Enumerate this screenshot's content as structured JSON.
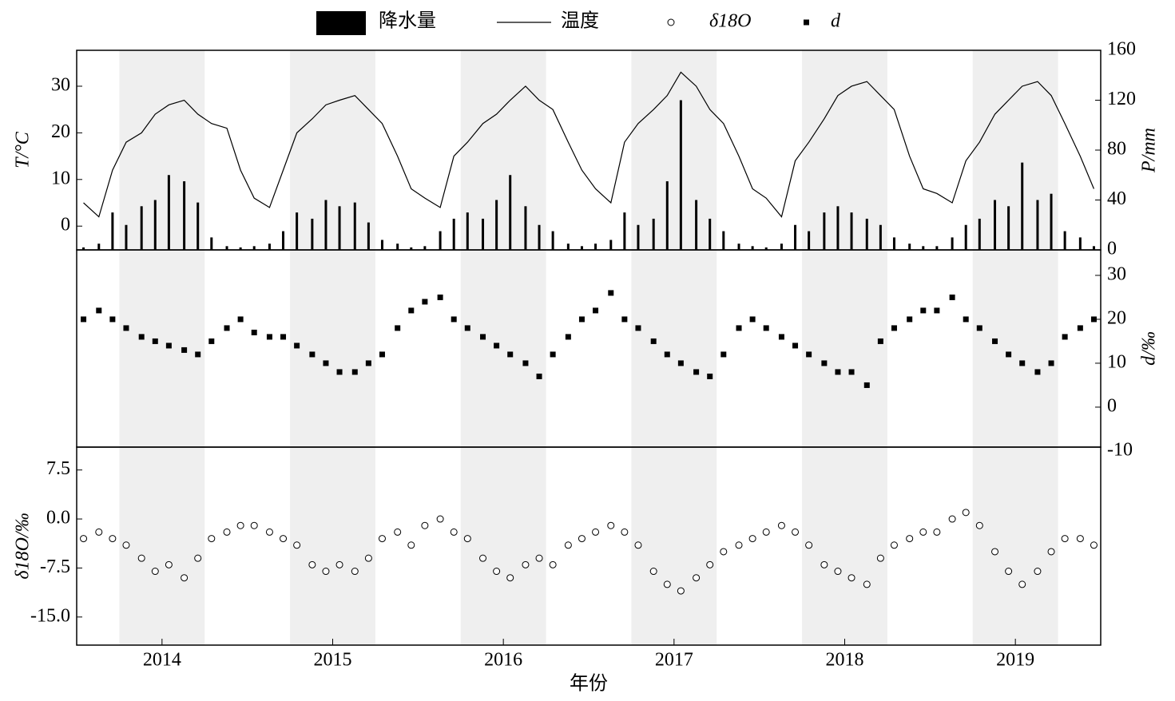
{
  "chart_data": {
    "type": "combo",
    "xlabel": "年份",
    "xlim": [
      2014.0,
      2020.0
    ],
    "xticks": [
      {
        "value": 2014.5,
        "label": "2014"
      },
      {
        "value": 2015.5,
        "label": "2015"
      },
      {
        "value": 2016.5,
        "label": "2016"
      },
      {
        "value": 2017.5,
        "label": "2017"
      },
      {
        "value": 2018.5,
        "label": "2018"
      },
      {
        "value": 2019.5,
        "label": "2019"
      }
    ],
    "shaded_periods": [
      [
        2014.25,
        2014.75
      ],
      [
        2015.25,
        2015.75
      ],
      [
        2016.25,
        2016.75
      ],
      [
        2017.25,
        2017.75
      ],
      [
        2018.25,
        2018.75
      ],
      [
        2019.25,
        2019.75
      ]
    ],
    "shade_color": "#efefef",
    "panels": [
      {
        "ylabel": "T/°C",
        "ylim": [
          -5.1,
          37.7
        ],
        "yticks": [
          0,
          10,
          20,
          30
        ],
        "y2label": "P/mm",
        "y2lim": [
          0,
          160
        ],
        "y2ticks": [
          0,
          40,
          80,
          120,
          160
        ]
      },
      {
        "y2label": "d/‰",
        "y2lim": [
          -9.1,
          35.8
        ],
        "y2ticks": [
          -10,
          0,
          10,
          20,
          30
        ]
      },
      {
        "ylabel": "δ18O/‰",
        "ylim": [
          -19.3,
          11.0
        ],
        "yticks": [
          7.5,
          {
            "value": 0,
            "label": "0.0"
          },
          -7.5,
          {
            "value": -15,
            "label": "-15.0"
          }
        ]
      }
    ],
    "x": [
      2014.04,
      2014.13,
      2014.21,
      2014.29,
      2014.38,
      2014.46,
      2014.54,
      2014.63,
      2014.71,
      2014.79,
      2014.88,
      2014.96,
      2015.04,
      2015.13,
      2015.21,
      2015.29,
      2015.38,
      2015.46,
      2015.54,
      2015.63,
      2015.71,
      2015.79,
      2015.88,
      2015.96,
      2016.04,
      2016.13,
      2016.21,
      2016.29,
      2016.38,
      2016.46,
      2016.54,
      2016.63,
      2016.71,
      2016.79,
      2016.88,
      2016.96,
      2017.04,
      2017.13,
      2017.21,
      2017.29,
      2017.38,
      2017.46,
      2017.54,
      2017.63,
      2017.71,
      2017.79,
      2017.88,
      2017.96,
      2018.04,
      2018.13,
      2018.21,
      2018.29,
      2018.38,
      2018.46,
      2018.54,
      2018.63,
      2018.71,
      2018.79,
      2018.88,
      2018.96,
      2019.04,
      2019.13,
      2019.21,
      2019.29,
      2019.38,
      2019.46,
      2019.54,
      2019.63,
      2019.71,
      2019.79,
      2019.88,
      2019.96
    ],
    "series": [
      {
        "name": "降水量",
        "type": "bar",
        "panel": 0,
        "axis": "y2",
        "color": "#000000",
        "values": [
          2,
          5,
          30,
          20,
          35,
          40,
          60,
          55,
          38,
          10,
          3,
          2,
          3,
          5,
          15,
          30,
          25,
          40,
          35,
          38,
          22,
          8,
          5,
          2,
          3,
          15,
          25,
          30,
          25,
          40,
          60,
          35,
          20,
          15,
          5,
          3,
          5,
          8,
          30,
          20,
          25,
          55,
          120,
          40,
          25,
          15,
          5,
          3,
          2,
          5,
          20,
          15,
          30,
          35,
          30,
          25,
          20,
          10,
          5,
          3,
          3,
          10,
          20,
          25,
          40,
          35,
          70,
          40,
          45,
          15,
          10,
          3
        ]
      },
      {
        "name": "温度",
        "type": "line",
        "panel": 0,
        "axis": "y",
        "color": "#000000",
        "values": [
          5,
          2,
          12,
          18,
          20,
          24,
          26,
          27,
          24,
          22,
          21,
          12,
          6,
          4,
          12,
          20,
          23,
          26,
          27,
          28,
          25,
          22,
          15,
          8,
          6,
          4,
          15,
          18,
          22,
          24,
          27,
          30,
          27,
          25,
          18,
          12,
          8,
          5,
          18,
          22,
          25,
          28,
          33,
          30,
          25,
          22,
          15,
          8,
          6,
          2,
          14,
          18,
          23,
          28,
          30,
          31,
          28,
          25,
          15,
          8,
          7,
          5,
          14,
          18,
          24,
          27,
          30,
          31,
          28,
          22,
          15,
          8
        ]
      },
      {
        "name": "δ18O",
        "type": "scatter",
        "marker": "circle",
        "panel": 2,
        "axis": "y",
        "color": "#000000",
        "values": [
          -3,
          -2,
          -3,
          -4,
          -6,
          -8,
          -7,
          -9,
          -6,
          -3,
          -2,
          -1,
          -1,
          -2,
          -3,
          -4,
          -7,
          -8,
          -7,
          -8,
          -6,
          -3,
          -2,
          -4,
          -1,
          0,
          -2,
          -3,
          -6,
          -8,
          -9,
          -7,
          -6,
          -7,
          -4,
          -3,
          -2,
          -1,
          -2,
          -4,
          -8,
          -10,
          -11,
          -9,
          -7,
          -5,
          -4,
          -3,
          -2,
          -1,
          -2,
          -4,
          -7,
          -8,
          -9,
          -10,
          -6,
          -4,
          -3,
          -2,
          -2,
          0,
          1,
          -1,
          -5,
          -8,
          -10,
          -8,
          -5,
          -3,
          -3,
          -4
        ]
      },
      {
        "name": "d",
        "type": "scatter",
        "marker": "square",
        "panel": 1,
        "axis": "y2",
        "color": "#000000",
        "values": [
          20,
          22,
          20,
          18,
          16,
          15,
          14,
          13,
          12,
          15,
          18,
          20,
          17,
          16,
          16,
          14,
          12,
          10,
          8,
          8,
          10,
          12,
          18,
          22,
          24,
          25,
          20,
          18,
          16,
          14,
          12,
          10,
          7,
          12,
          16,
          20,
          22,
          26,
          20,
          18,
          15,
          12,
          10,
          8,
          7,
          12,
          18,
          20,
          18,
          16,
          14,
          12,
          10,
          8,
          8,
          5,
          15,
          18,
          20,
          22,
          22,
          25,
          20,
          18,
          15,
          12,
          10,
          8,
          10,
          16,
          18,
          20
        ]
      }
    ]
  }
}
